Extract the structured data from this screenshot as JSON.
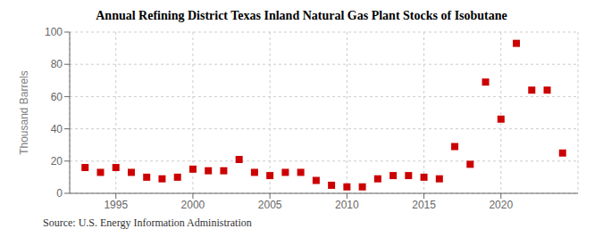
{
  "chart_data": {
    "type": "scatter",
    "title": "Annual Refining District Texas Inland Natural Gas Plant Stocks of Isobutane",
    "y_label": "Thousand Barrels",
    "annotations": [
      "Source: U.S. Energy Information Administration"
    ],
    "x": [
      1993,
      1994,
      1995,
      1996,
      1997,
      1998,
      1999,
      2000,
      2001,
      2002,
      2003,
      2004,
      2005,
      2006,
      2007,
      2008,
      2009,
      2010,
      2011,
      2012,
      2013,
      2014,
      2015,
      2016,
      2017,
      2018,
      2019,
      2020,
      2021,
      2022,
      2023,
      2024
    ],
    "values": [
      16,
      13,
      16,
      13,
      10,
      9,
      10,
      15,
      14,
      14,
      21,
      13,
      11,
      13,
      13,
      8,
      5,
      4,
      4,
      9,
      11,
      11,
      10,
      9,
      29,
      18,
      69,
      46,
      93,
      64,
      64,
      25
    ],
    "color": "#cc0000",
    "marker": "square",
    "xlim": [
      1992,
      2025
    ],
    "xticks": [
      1995,
      2000,
      2005,
      2010,
      2015,
      2020
    ],
    "ylim": [
      0,
      100
    ],
    "yticks": [
      0,
      20,
      40,
      60,
      80,
      100
    ],
    "grid": true
  }
}
